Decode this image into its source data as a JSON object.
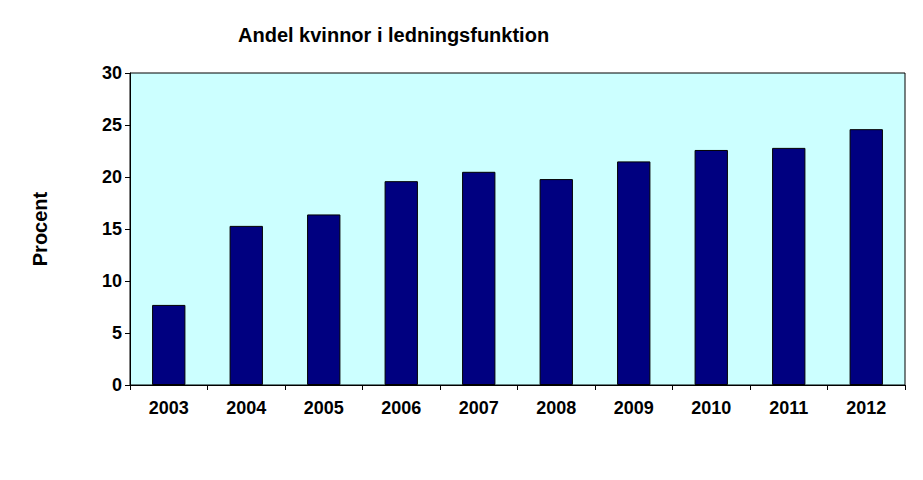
{
  "chart_data": {
    "type": "bar",
    "title": "Andel kvinnor i ledningsfunktion",
    "ylabel": "Procent",
    "categories": [
      "2003",
      "2004",
      "2005",
      "2006",
      "2007",
      "2008",
      "2009",
      "2010",
      "2011",
      "2012"
    ],
    "values": [
      7.7,
      15.3,
      16.4,
      19.6,
      20.5,
      19.8,
      21.5,
      22.6,
      22.8,
      24.6
    ],
    "color": "#000080",
    "ylim": [
      0,
      30
    ],
    "yticks": [
      0,
      5,
      10,
      15,
      20,
      25,
      30
    ],
    "grid": false
  }
}
